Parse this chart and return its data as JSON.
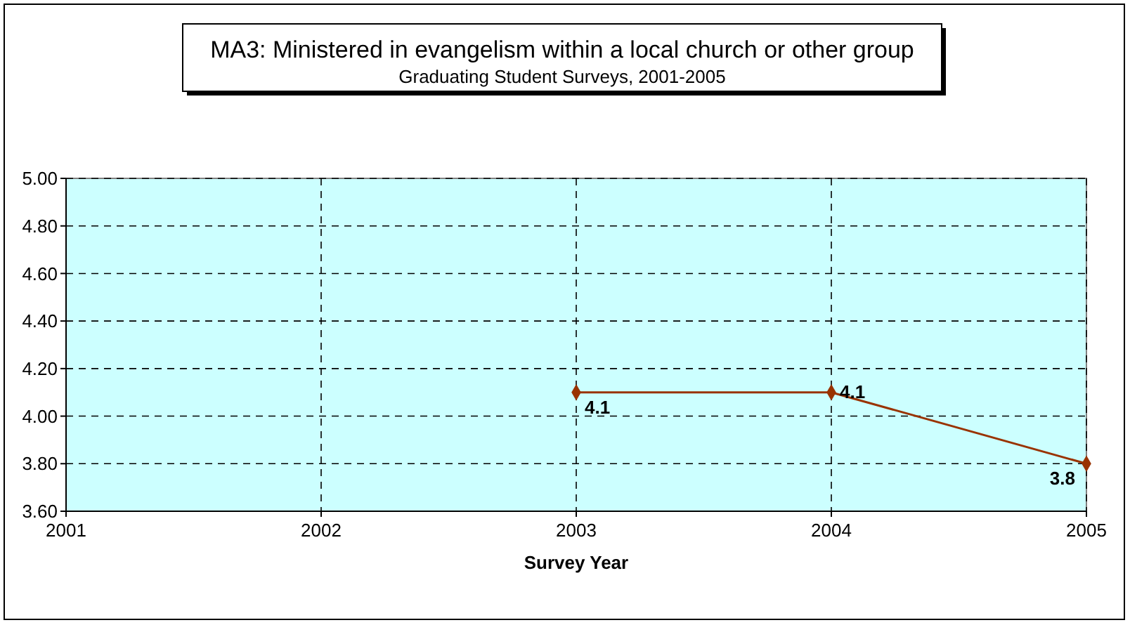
{
  "chart_data": {
    "type": "line",
    "title": "MA3: Ministered in evangelism within a local church or other group",
    "subtitle": "Graduating Student Surveys, 2001-2005",
    "xlabel": "Survey Year",
    "series": [
      {
        "color": "#993300",
        "x": [
          2003,
          2004,
          2005
        ],
        "values": [
          4.1,
          4.1,
          3.8
        ]
      }
    ],
    "xlim": [
      2001,
      2005
    ],
    "xticks": [
      2001,
      2002,
      2003,
      2004,
      2005
    ],
    "ylim": [
      3.6,
      5.0
    ],
    "yticks": [
      {
        "value": 3.6,
        "label": "3.60"
      },
      {
        "value": 3.8,
        "label": "3.80"
      },
      {
        "value": 4.0,
        "label": "4.00"
      },
      {
        "value": 4.2,
        "label": "4.20"
      },
      {
        "value": 4.4,
        "label": "4.40"
      },
      {
        "value": 4.6,
        "label": "4.60"
      },
      {
        "value": 4.8,
        "label": "4.80"
      },
      {
        "value": 5.0,
        "label": "5.00"
      }
    ],
    "grid": true,
    "marker": "diamond",
    "data_labels": true
  }
}
